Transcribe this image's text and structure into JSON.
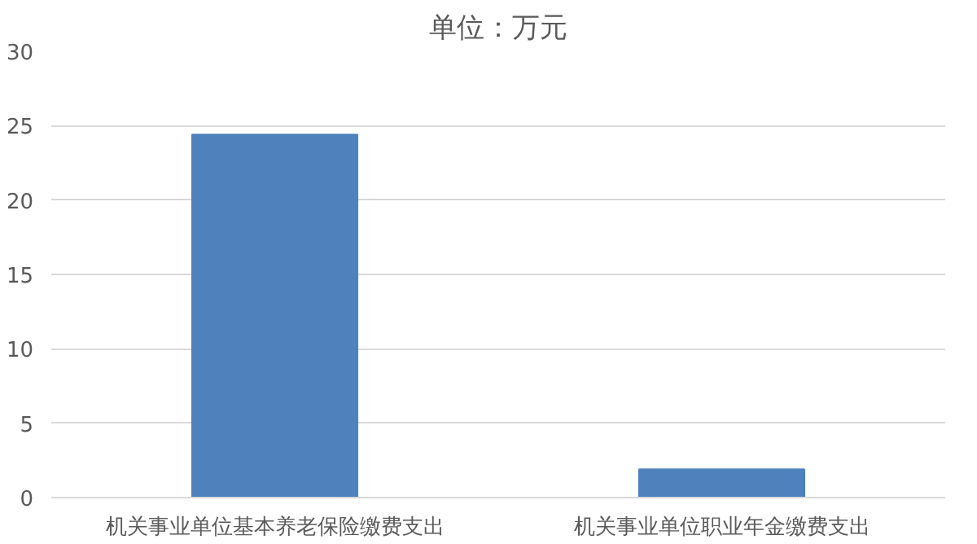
{
  "chart_data": {
    "type": "bar",
    "title": "单位：万元",
    "categories": [
      "机关事业单位基本养老保险缴费支出",
      "机关事业单位职业年金缴费支出"
    ],
    "values": [
      24.4,
      1.9
    ],
    "color": "#4f81bd",
    "ylim": [
      0,
      30
    ],
    "yticks": [
      0,
      5,
      10,
      15,
      20,
      25,
      30
    ],
    "grid": "y"
  }
}
